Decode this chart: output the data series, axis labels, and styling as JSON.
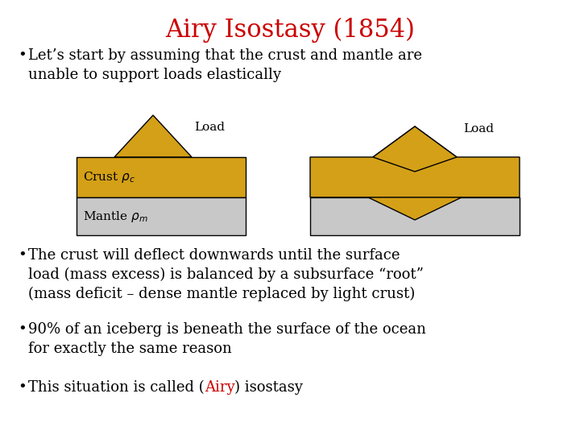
{
  "title": "Airy Isostasy (1854)",
  "title_color": "#CC0000",
  "title_fontsize": 22,
  "bg_color": "#FFFFFF",
  "bullet_color": "#000000",
  "bullet_fontsize": 13,
  "crust_color": "#D4A017",
  "mantle_color": "#C8C8C8",
  "outline_color": "#000000",
  "airy_red": "#CC0000",
  "bullet1": "Let’s start by assuming that the crust and mantle are\nunable to support loads elastically",
  "bullet2": "The crust will deflect downwards until the surface\nload (mass excess) is balanced by a subsurface “root”\n(mass deficit – dense mantle replaced by light crust)",
  "bullet3": "90% of an iceberg is beneath the surface of the ocean\nfor exactly the same reason",
  "bullet4_pre": "This situation is called (",
  "bullet4_airy": "Airy",
  "bullet4_post": ") isostasy"
}
